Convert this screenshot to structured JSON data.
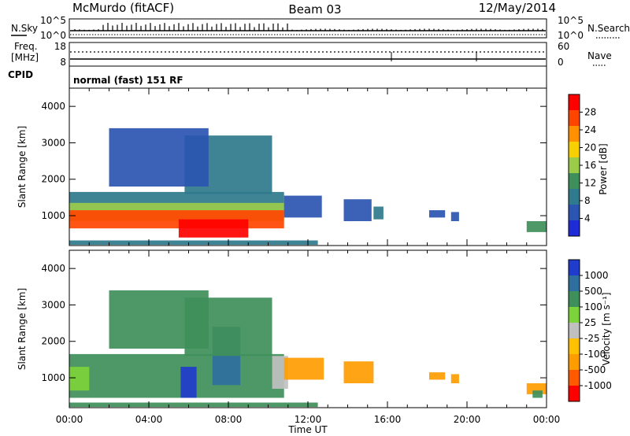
{
  "header": {
    "station": "McMurdo (fitACF)",
    "beam": "Beam 03",
    "date": "12/May/2014"
  },
  "noise_panel": {
    "left_label": "N.Sky",
    "right_label": "N.Search",
    "left_ticks": [
      "10^5",
      "10^0"
    ],
    "right_ticks": [
      "10^5",
      "10^0"
    ]
  },
  "freq_panel": {
    "left_label_line1": "Freq.",
    "left_label_line2": "[MHz]",
    "right_label": "Nave",
    "left_ticks": [
      "18",
      "8"
    ],
    "right_ticks": [
      "60",
      "0"
    ]
  },
  "cpid_panel": {
    "label": "CPID",
    "program": "normal (fast) 151 RF"
  },
  "colors": {
    "power": [
      "#1f2bd6",
      "#2a55b0",
      "#2f7a8c",
      "#3f8f5a",
      "#9acc4a",
      "#f6d000",
      "#ff9000",
      "#ff4500",
      "#ff0000"
    ],
    "velocity": [
      "#ff0000",
      "#ff5a00",
      "#ff9c00",
      "#ffc000",
      "#c0c0c0",
      "#7cd33a",
      "#3f8f5a",
      "#2f6fa0",
      "#1f3ccc"
    ]
  },
  "chart_data": [
    {
      "type": "heatmap",
      "quantity": "Power",
      "ylabel": "Slant Range [km]",
      "xlabel": "",
      "colorbar_label": "Power [dB]",
      "colorbar_ticks": [
        "4",
        "8",
        "12",
        "16",
        "20",
        "24",
        "28"
      ],
      "colorbar_range": [
        0,
        32
      ],
      "xlim_hours": [
        0,
        24
      ],
      "ylim_km": [
        180,
        4500
      ],
      "y_ticks": [
        "1000",
        "2000",
        "3000",
        "4000"
      ],
      "x_ticks": [
        "00:00",
        "04:00",
        "08:00",
        "12:00",
        "16:00",
        "20:00",
        "00:00"
      ],
      "grid": false,
      "regions": [
        {
          "t0": 0.0,
          "t1": 10.8,
          "r0": 1150,
          "r1": 1650,
          "value": 8
        },
        {
          "t0": 0.0,
          "t1": 10.8,
          "r0": 850,
          "r1": 1350,
          "value": 16
        },
        {
          "t0": 0.0,
          "t1": 10.8,
          "r0": 650,
          "r1": 1150,
          "value": 26
        },
        {
          "t0": 5.5,
          "t1": 9.0,
          "r0": 400,
          "r1": 900,
          "value": 30
        },
        {
          "t0": 10.8,
          "t1": 12.7,
          "r0": 950,
          "r1": 1550,
          "value": 6
        },
        {
          "t0": 13.8,
          "t1": 15.2,
          "r0": 850,
          "r1": 1450,
          "value": 6
        },
        {
          "t0": 15.3,
          "t1": 15.8,
          "r0": 900,
          "r1": 1250,
          "value": 8
        },
        {
          "t0": 18.1,
          "t1": 18.9,
          "r0": 950,
          "r1": 1150,
          "value": 6
        },
        {
          "t0": 19.2,
          "t1": 19.6,
          "r0": 850,
          "r1": 1100,
          "value": 6
        },
        {
          "t0": 23.0,
          "t1": 24.0,
          "r0": 550,
          "r1": 850,
          "value": 12
        },
        {
          "t0": 0.0,
          "t1": 12.5,
          "r0": 200,
          "r1": 320,
          "value": 8
        },
        {
          "t0": 5.8,
          "t1": 10.2,
          "r0": 1600,
          "r1": 3200,
          "value": 10
        },
        {
          "t0": 2.0,
          "t1": 7.0,
          "r0": 1800,
          "r1": 3400,
          "value": 6
        }
      ]
    },
    {
      "type": "heatmap",
      "quantity": "Velocity",
      "ylabel": "Slant Range [km]",
      "xlabel": "Time UT",
      "colorbar_label": "Velocity [m s⁻¹]",
      "colorbar_ticks": [
        "-1000",
        "-500",
        "-100",
        "-25",
        "25",
        "100",
        "500",
        "1000"
      ],
      "xlim_hours": [
        0,
        24
      ],
      "ylim_km": [
        180,
        4500
      ],
      "y_ticks": [
        "1000",
        "2000",
        "3000",
        "4000"
      ],
      "x_ticks": [
        "00:00",
        "04:00",
        "08:00",
        "12:00",
        "16:00",
        "20:00",
        "00:00"
      ],
      "grid": false,
      "regions": [
        {
          "t0": 0.0,
          "t1": 10.8,
          "r0": 450,
          "r1": 1650,
          "class": 6
        },
        {
          "t0": 0.0,
          "t1": 1.0,
          "r0": 650,
          "r1": 1300,
          "class": 5
        },
        {
          "t0": 5.6,
          "t1": 6.4,
          "r0": 450,
          "r1": 1300,
          "class": 8
        },
        {
          "t0": 7.2,
          "t1": 8.6,
          "r0": 800,
          "r1": 2400,
          "class": 7
        },
        {
          "t0": 10.2,
          "t1": 11.0,
          "r0": 700,
          "r1": 1600,
          "class": 4
        },
        {
          "t0": 10.8,
          "t1": 12.8,
          "r0": 950,
          "r1": 1550,
          "class": 2
        },
        {
          "t0": 13.8,
          "t1": 15.3,
          "r0": 850,
          "r1": 1450,
          "class": 2
        },
        {
          "t0": 18.1,
          "t1": 18.9,
          "r0": 950,
          "r1": 1150,
          "class": 2
        },
        {
          "t0": 19.2,
          "t1": 19.6,
          "r0": 850,
          "r1": 1100,
          "class": 2
        },
        {
          "t0": 23.0,
          "t1": 24.0,
          "r0": 550,
          "r1": 850,
          "class": 2
        },
        {
          "t0": 23.3,
          "t1": 23.8,
          "r0": 450,
          "r1": 650,
          "class": 6
        },
        {
          "t0": 0.0,
          "t1": 12.5,
          "r0": 200,
          "r1": 320,
          "class": 6
        },
        {
          "t0": 5.8,
          "t1": 10.2,
          "r0": 1600,
          "r1": 3200,
          "class": 6
        },
        {
          "t0": 2.0,
          "t1": 7.0,
          "r0": 1800,
          "r1": 3400,
          "class": 6
        }
      ]
    }
  ]
}
